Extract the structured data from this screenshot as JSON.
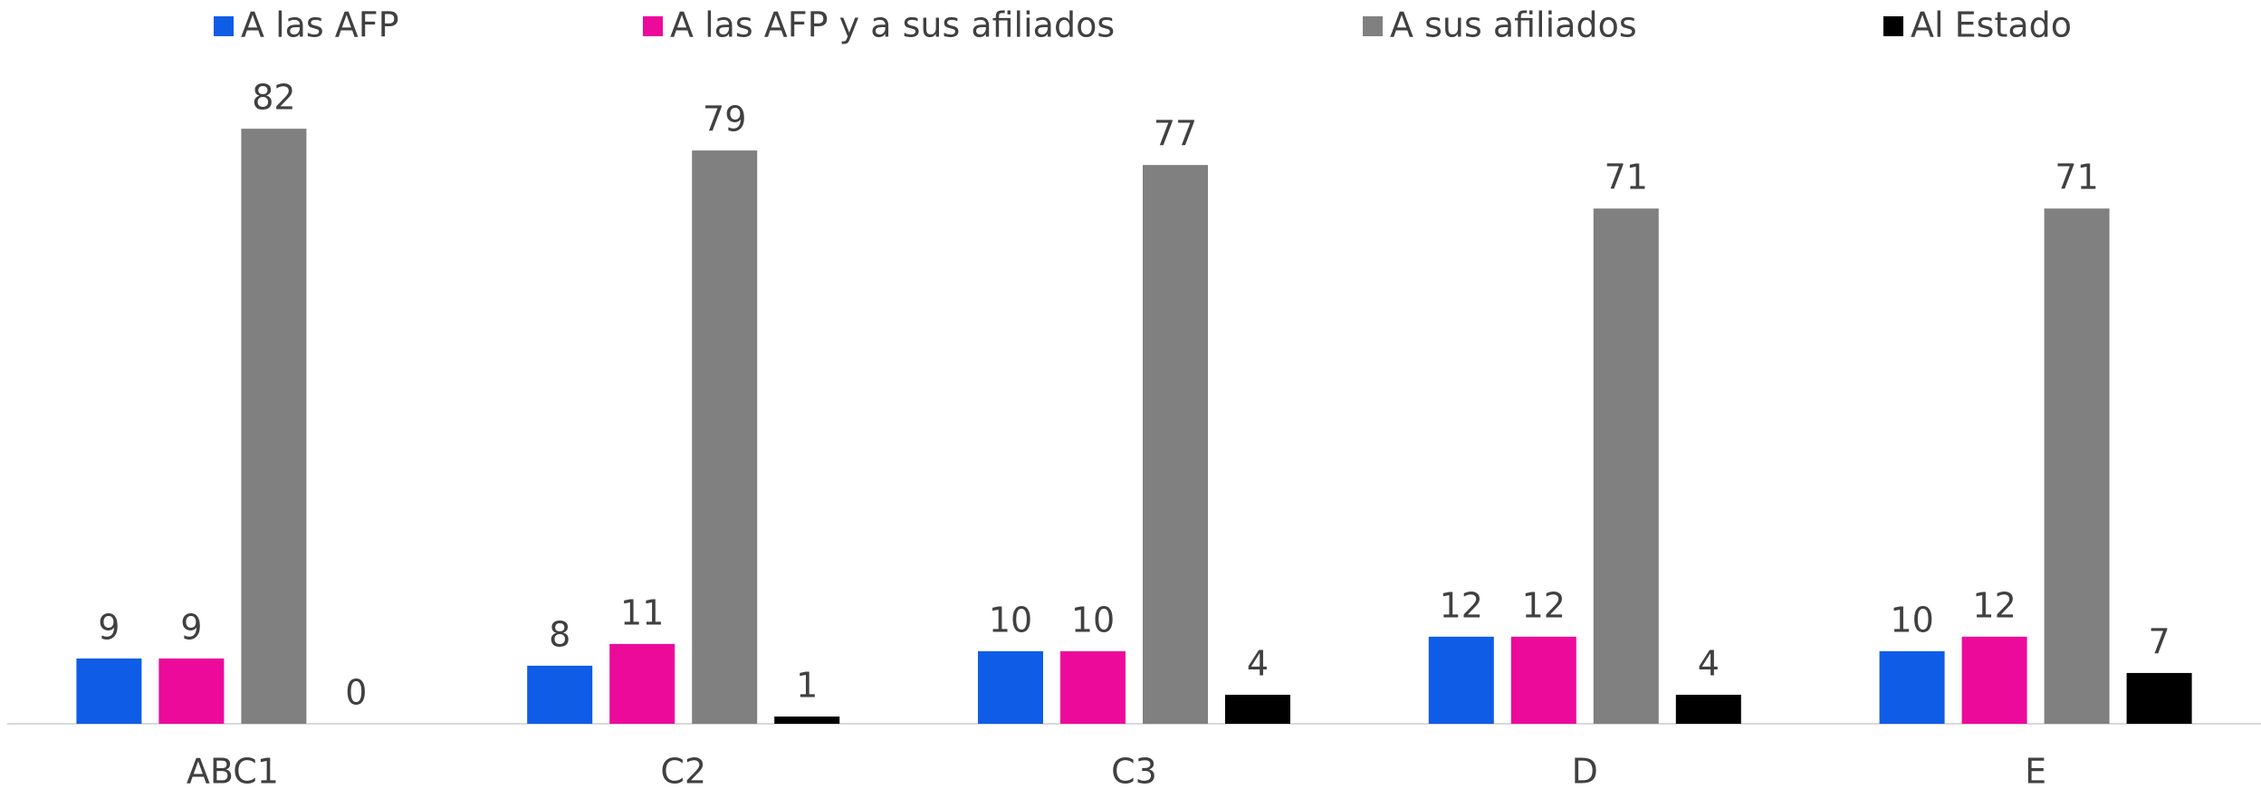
{
  "chart_data": {
    "type": "bar",
    "categories": [
      "ABC1",
      "C2",
      "C3",
      "D",
      "E"
    ],
    "series": [
      {
        "name": "A las AFP",
        "color": "#0f5ce6",
        "values": [
          9,
          8,
          10,
          12,
          10
        ]
      },
      {
        "name": "A las AFP y a sus afiliados",
        "color": "#ec0a9b",
        "values": [
          9,
          11,
          10,
          12,
          12
        ]
      },
      {
        "name": "A sus afiliados",
        "color": "#808080",
        "values": [
          82,
          79,
          77,
          71,
          71
        ]
      },
      {
        "name": "Al Estado",
        "color": "#000000",
        "values": [
          0,
          1,
          4,
          4,
          7
        ]
      }
    ],
    "ylim": [
      0,
      90
    ],
    "grid": false,
    "legend": "top"
  }
}
